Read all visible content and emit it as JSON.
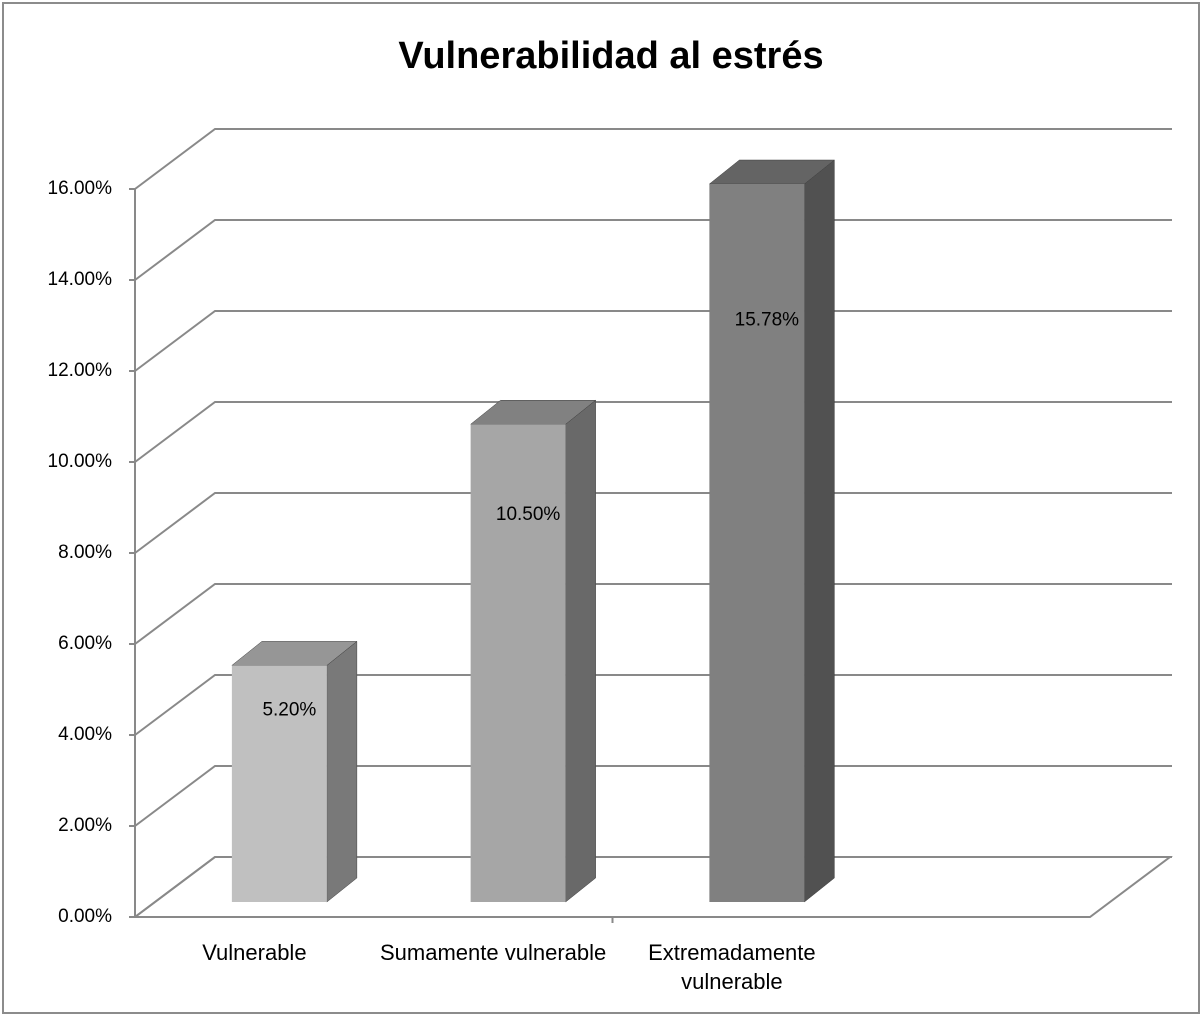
{
  "chart_data": {
    "type": "bar3d",
    "title": "Vulnerabilidad al estrés",
    "categories": [
      "Vulnerable",
      "Sumamente vulnerable",
      "Extremadamente vulnerable"
    ],
    "values": [
      5.2,
      10.5,
      15.78
    ],
    "value_labels": [
      "5.20%",
      "10.50%",
      "15.78%"
    ],
    "colors": [
      "#c0c0c0",
      "#a6a6a6",
      "#808080"
    ],
    "ylim": [
      0,
      16
    ],
    "yticks": [
      {
        "value": 0,
        "label": "0.00%"
      },
      {
        "value": 2,
        "label": "2.00%"
      },
      {
        "value": 4,
        "label": "4.00%"
      },
      {
        "value": 6,
        "label": "6.00%"
      },
      {
        "value": 8,
        "label": "8.00%"
      },
      {
        "value": 10,
        "label": "10.00%"
      },
      {
        "value": 12,
        "label": "12.00%"
      },
      {
        "value": 14,
        "label": "14.00%"
      },
      {
        "value": 16,
        "label": "16.00%"
      }
    ],
    "grid": true
  }
}
